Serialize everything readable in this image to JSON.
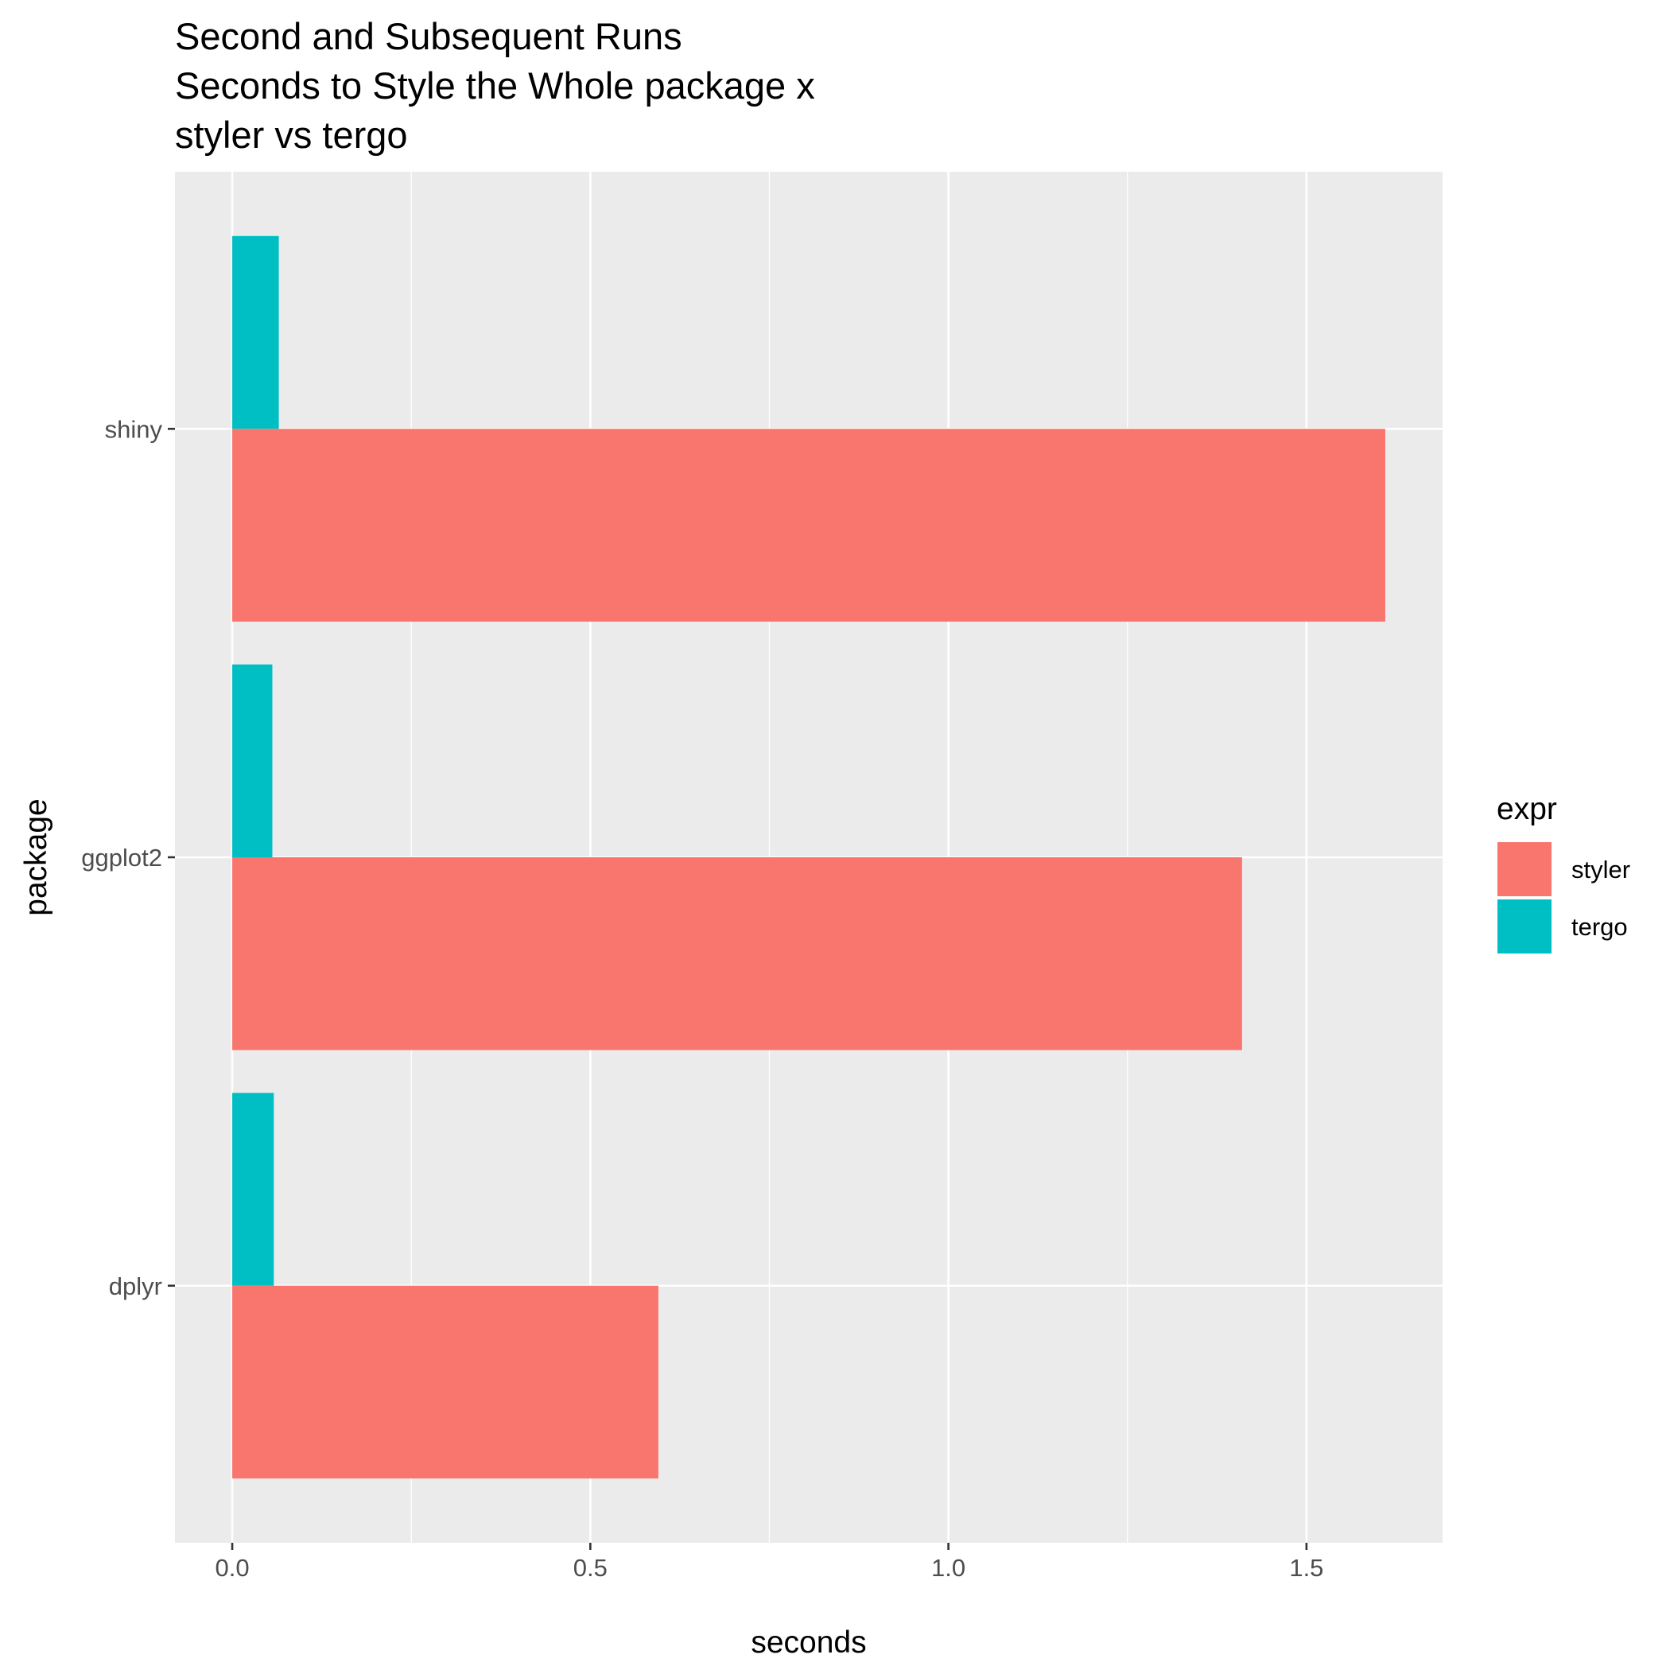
{
  "chart_data": {
    "type": "bar",
    "orientation": "horizontal",
    "title": [
      "Second and Subsequent Runs",
      "Seconds to Style the Whole package x",
      "styler vs tergo"
    ],
    "xlabel": "seconds",
    "ylabel": "package",
    "categories": [
      "shiny",
      "ggplot2",
      "dplyr"
    ],
    "x_ticks": [
      "0.0",
      "0.5",
      "1.0",
      "1.5"
    ],
    "xlim": [
      -0.08,
      1.69
    ],
    "grid": true,
    "legend": {
      "title": "expr",
      "position": "right"
    },
    "series": [
      {
        "name": "styler",
        "color": "#F8766D",
        "values": [
          1.61,
          1.41,
          0.595
        ]
      },
      {
        "name": "tergo",
        "color": "#00BFC4",
        "values": [
          0.065,
          0.056,
          0.058
        ]
      }
    ]
  }
}
